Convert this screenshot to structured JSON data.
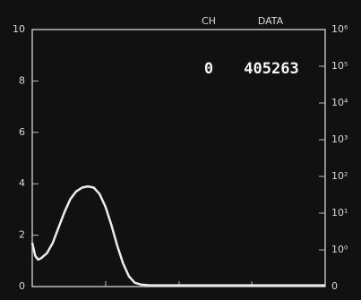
{
  "chart_data": {
    "type": "line",
    "header": {
      "channel_label": "CH",
      "data_label": "DATA",
      "channel_value": "0",
      "data_value": "405263"
    },
    "x": [
      0,
      1,
      2,
      3,
      5,
      7,
      9,
      11,
      13,
      15,
      17,
      19,
      21,
      23,
      25,
      27,
      29,
      31,
      33,
      35,
      37,
      40,
      50,
      60,
      70,
      80,
      90,
      100
    ],
    "values": [
      1.7,
      1.2,
      1.05,
      1.1,
      1.3,
      1.7,
      2.3,
      2.9,
      3.4,
      3.7,
      3.85,
      3.9,
      3.85,
      3.6,
      3.1,
      2.4,
      1.6,
      0.9,
      0.4,
      0.15,
      0.08,
      0.05,
      0.05,
      0.05,
      0.05,
      0.05,
      0.05,
      0.05
    ],
    "color": "#ececec",
    "xlim": [
      0,
      100
    ],
    "ylim": [
      0,
      10
    ],
    "yticks": [
      0,
      2,
      4,
      6,
      8,
      10
    ],
    "y2lim": [
      0,
      7
    ],
    "y2ticks": [
      0,
      {
        "value": 1,
        "label": "10⁰"
      },
      {
        "value": 2,
        "label": "10¹"
      },
      {
        "value": 3,
        "label": "10²"
      },
      {
        "value": 4,
        "label": "10³"
      },
      {
        "value": 5,
        "label": "10⁴"
      },
      {
        "value": 6,
        "label": "10⁵"
      },
      {
        "value": 7,
        "label": "10⁶"
      }
    ]
  }
}
